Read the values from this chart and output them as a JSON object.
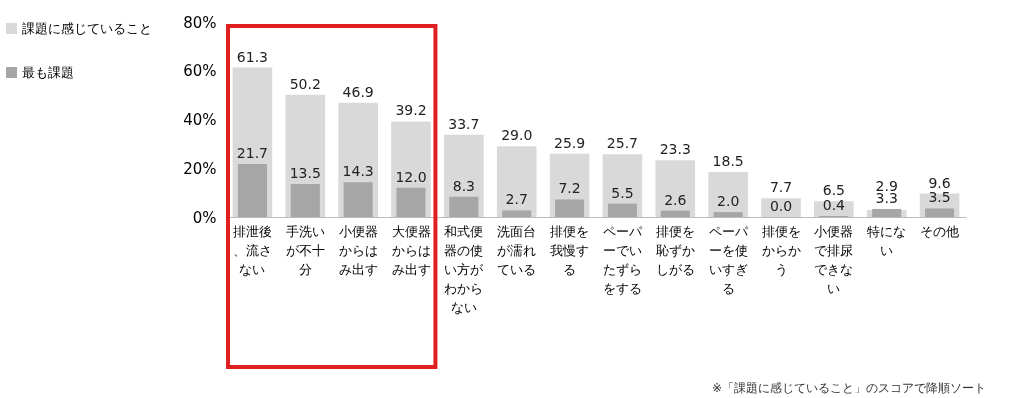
{
  "chart_data": {
    "type": "bar",
    "categories": [
      "排泄後、流さない",
      "手洗いが不十分",
      "小便器からはみ出す",
      "大便器からはみ出す",
      "和式便器の使い方がわからない",
      "洗面台が濡れている",
      "排便を我慢する",
      "ペーパーでいたずらをする",
      "排便を恥ずかしがる",
      "ペーパーを使いすぎる",
      "排便をからかう",
      "小便器で排尿できない",
      "特にない",
      "その他"
    ],
    "series": [
      {
        "name": "課題に感じていること",
        "color": "#d9d9d9",
        "values": [
          61.3,
          50.2,
          46.9,
          39.2,
          33.7,
          29.0,
          25.9,
          25.7,
          23.3,
          18.5,
          7.7,
          6.5,
          2.9,
          9.6
        ],
        "value_labels": [
          "61.3",
          "50.2",
          "46.9",
          "39.2",
          "33.7",
          "29.0",
          "25.9",
          "25.7",
          "23.3",
          "18.5",
          "7.7",
          "6.5",
          "2.9",
          "9.6"
        ]
      },
      {
        "name": "最も課題",
        "color": "#a6a6a6",
        "values": [
          21.7,
          13.5,
          14.3,
          12.0,
          8.3,
          2.7,
          7.2,
          5.5,
          2.6,
          2.0,
          0.0,
          0.4,
          3.3,
          3.5
        ],
        "value_labels": [
          "21.7",
          "13.5",
          "14.3",
          "12.0",
          "8.3",
          "2.7",
          "7.2",
          "5.5",
          "2.6",
          "2.0",
          "0.0",
          "0.4",
          "3.3",
          "3.5"
        ]
      }
    ],
    "ylim": [
      0,
      80
    ],
    "yticks": [
      {
        "value": 0,
        "label": "0%"
      },
      {
        "value": 20,
        "label": "20%"
      },
      {
        "value": 40,
        "label": "40%"
      },
      {
        "value": 60,
        "label": "60%"
      },
      {
        "value": 80,
        "label": "80%"
      }
    ],
    "legend": "left",
    "annotations": [
      "※「課題に感じていること」のスコアで降順ソート"
    ]
  }
}
